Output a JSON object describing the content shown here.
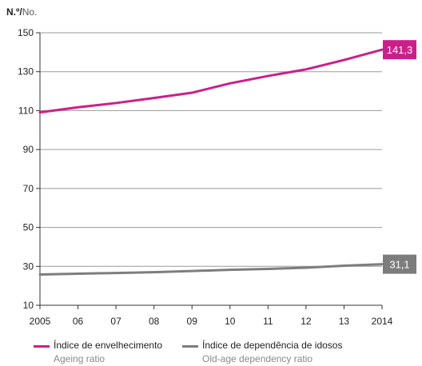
{
  "unit": {
    "primary": "N.º/",
    "secondary": "No."
  },
  "chart_data": {
    "type": "line",
    "x": [
      "2005",
      "06",
      "07",
      "08",
      "09",
      "10",
      "11",
      "12",
      "13",
      "2014"
    ],
    "ylim": [
      10,
      150
    ],
    "yticks": [
      10,
      30,
      50,
      70,
      90,
      110,
      130,
      150
    ],
    "grid": true,
    "series": [
      {
        "name": "Índice de envelhecimento",
        "name_en": "Ageing ratio",
        "color": "#cc1f8a",
        "values": [
          109.1,
          111.7,
          113.9,
          116.5,
          119.2,
          124.0,
          127.8,
          131.2,
          136.0,
          141.3
        ],
        "end_label": "141,3"
      },
      {
        "name": "Índice de dependência de idosos",
        "name_en": "Old-age dependency ratio",
        "color": "#7d7d7d",
        "values": [
          25.8,
          26.2,
          26.6,
          27.0,
          27.6,
          28.2,
          28.7,
          29.3,
          30.3,
          31.1
        ],
        "end_label": "31,1"
      }
    ]
  }
}
